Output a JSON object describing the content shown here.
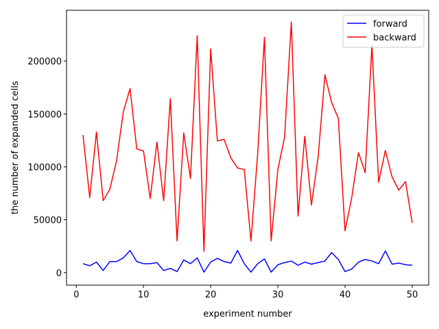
{
  "chart_data": {
    "type": "line",
    "xlabel": "experiment number",
    "ylabel": "the number of expanded cells",
    "xlim": [
      -1.45,
      52.45
    ],
    "ylim": [
      -11800,
      248000
    ],
    "xticks": [
      0,
      10,
      20,
      30,
      40,
      50
    ],
    "yticks": [
      0,
      50000,
      100000,
      150000,
      200000
    ],
    "grid": false,
    "legend_position": "top-right",
    "x": [
      1,
      2,
      3,
      4,
      5,
      6,
      7,
      8,
      9,
      10,
      11,
      12,
      13,
      14,
      15,
      16,
      17,
      18,
      19,
      20,
      21,
      22,
      23,
      24,
      25,
      26,
      27,
      28,
      29,
      30,
      31,
      32,
      33,
      34,
      35,
      36,
      37,
      38,
      39,
      40,
      41,
      42,
      43,
      44,
      45,
      46,
      47,
      48,
      49,
      50
    ],
    "series": [
      {
        "name": "forward",
        "color": "#0000ff",
        "values": [
          8500,
          6500,
          10000,
          2000,
          10500,
          10500,
          14000,
          21000,
          10500,
          8500,
          8500,
          9500,
          2000,
          4000,
          1000,
          12000,
          8500,
          14000,
          500,
          10000,
          13500,
          10500,
          9000,
          21000,
          8500,
          500,
          8500,
          13000,
          500,
          7500,
          9500,
          11000,
          7000,
          10000,
          8000,
          9500,
          11000,
          19000,
          12500,
          1000,
          3500,
          10000,
          12500,
          11000,
          8500,
          20500,
          8000,
          9000,
          7500,
          7000
        ]
      },
      {
        "name": "backward",
        "color": "#ff0000",
        "values": [
          130000,
          71000,
          133000,
          68000,
          79000,
          106000,
          152000,
          174000,
          117000,
          115000,
          70000,
          123500,
          68000,
          164500,
          30000,
          132000,
          89000,
          224000,
          20000,
          211500,
          124500,
          126000,
          108500,
          99000,
          97500,
          30000,
          113000,
          222500,
          30000,
          97500,
          128000,
          237000,
          53500,
          129000,
          64000,
          110000,
          187000,
          161000,
          146000,
          39500,
          71000,
          113500,
          94500,
          215000,
          85500,
          115500,
          90500,
          78000,
          86000,
          47000
        ]
      }
    ]
  }
}
